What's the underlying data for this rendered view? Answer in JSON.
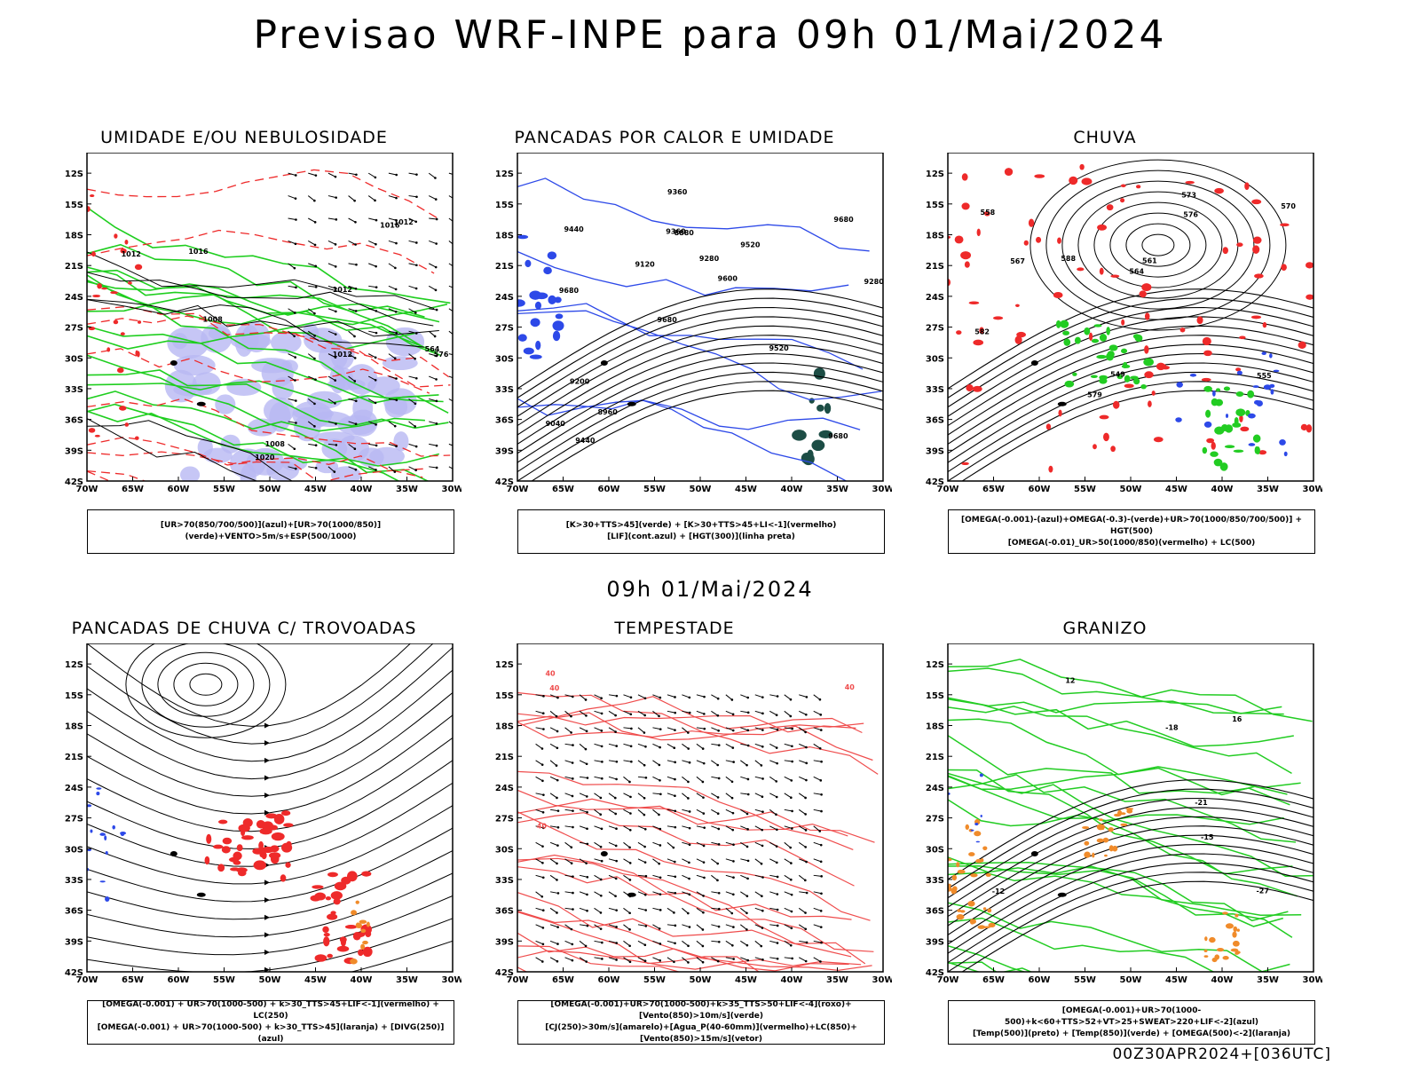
{
  "header": {
    "title": "Previsao WRF-INPE  para 09h 01/Mai/2024"
  },
  "middle": {
    "subtitle": "09h 01/Mai/2024"
  },
  "footer": {
    "run": "00Z30APR2024+[036UTC]"
  },
  "axes": {
    "lat_labels": [
      "12S",
      "15S",
      "18S",
      "21S",
      "24S",
      "27S",
      "30S",
      "33S",
      "36S",
      "39S",
      "42S"
    ],
    "lon_labels": [
      "70W",
      "65W",
      "60W",
      "55W",
      "50W",
      "45W",
      "40W",
      "35W",
      "30W"
    ]
  },
  "panels": [
    {
      "title": "UMIDADE E/OU NEBULOSIDADE",
      "legend": [
        "[UR>70(850/700/500)](azul)+[UR>70(1000/850)](verde)+VENTO>5m/s+ESP(500/1000)"
      ],
      "contour_labels": [
        "1012",
        "1016",
        "1012",
        "1008",
        "1016",
        "1020",
        "1012",
        "1008",
        "1012",
        "576",
        "564"
      ]
    },
    {
      "title": "PANCADAS POR CALOR E UMIDADE",
      "legend": [
        "[K>30+TTS>45](verde) + [K>30+TTS>45+LI<-1](vermelho)",
        "[LIF](cont.azul) + [HGT(300)](linha preta)"
      ],
      "contour_labels": [
        "9680",
        "9680",
        "9680",
        "9680",
        "9520",
        "9440",
        "9360",
        "9280",
        "9200",
        "9120",
        "9040",
        "8960",
        "8880",
        "9600",
        "9520",
        "9440",
        "9360",
        "9280"
      ]
    },
    {
      "title": "CHUVA",
      "legend": [
        "[OMEGA(-0.001)-(azul)+OMEGA(-0.3)-(verde)+UR>70(1000/850/700/500)] + HGT(500)",
        "[OMEGA(-0.01)_UR>50(1000/850)(vermelho) + LC(500)"
      ],
      "contour_labels": [
        "588",
        "582",
        "579",
        "576",
        "573",
        "570",
        "567",
        "564",
        "561",
        "558",
        "555",
        "549"
      ]
    },
    {
      "title": "PANCADAS DE CHUVA C/ TROVOADAS",
      "legend": [
        "[OMEGA(-0.001) + UR>70(1000-500) + k>30_TTS>45+LIF<-1](vermelho) + LC(250)",
        "[OMEGA(-0.001) + UR>70(1000-500) + k>30_TTS>45](laranja) + [DIVG(250)](azul)"
      ],
      "contour_labels": []
    },
    {
      "title": "TEMPESTADE",
      "legend": [
        "[OMEGA(-0.001)+UR>70(1000-500)+k>35_TTS>50+LIF<-4](roxo)+[Vento(850)>10m/s](verde)",
        "[CJ(250)>30m/s](amarelo)+[Agua_P(40-60mm)](vermelho)+LC(850)+[Vento(850)>15m/s](vetor)"
      ],
      "contour_labels": [
        "40",
        "40",
        "40",
        "40"
      ]
    },
    {
      "title": "GRANIZO",
      "legend": [
        "[OMEGA(-0.001)+UR>70(1000-500)+k<60+TTS>52+VT>25+SWEAT>220+LIF<-2](azul)",
        "[Temp(500)](preto) + [Temp(850)](verde) + [OMEGA(500)<-2](laranja)"
      ],
      "contour_labels": [
        "-12",
        "-15",
        "-18",
        "-21",
        "-27",
        "16",
        "12"
      ]
    }
  ]
}
